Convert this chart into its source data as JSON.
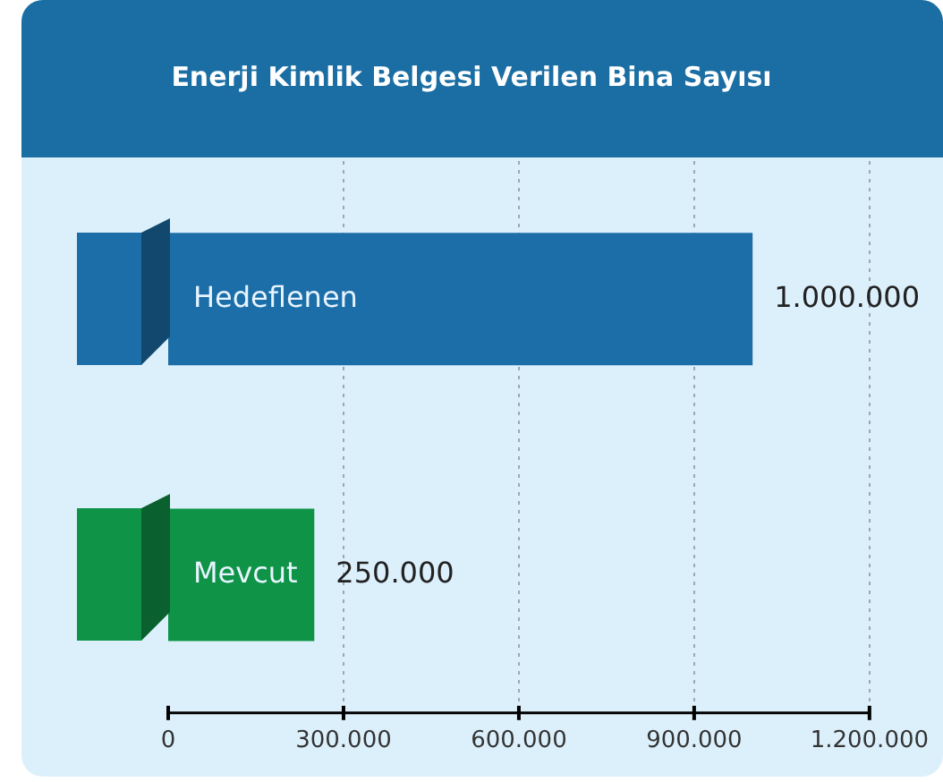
{
  "chart_data": {
    "type": "bar",
    "orientation": "horizontal",
    "title": "Enerji Kimlik Belgesi Verilen Bina Sayısı",
    "categories": [
      "Hedeflenen",
      "Mevcut"
    ],
    "values": [
      1000000,
      250000
    ],
    "colors": [
      "#1b6ea8",
      "#0f9447"
    ],
    "value_labels": [
      "1.000.000",
      "250.000"
    ],
    "xlim": [
      0,
      1200000
    ],
    "xticks": [
      {
        "value": 0,
        "label": "0"
      },
      {
        "value": 300000,
        "label": "300.000"
      },
      {
        "value": 600000,
        "label": "600.000"
      },
      {
        "value": 900000,
        "label": "900.000"
      },
      {
        "value": 1200000,
        "label": "1.200.000"
      }
    ],
    "grid": "x",
    "legend": false
  }
}
